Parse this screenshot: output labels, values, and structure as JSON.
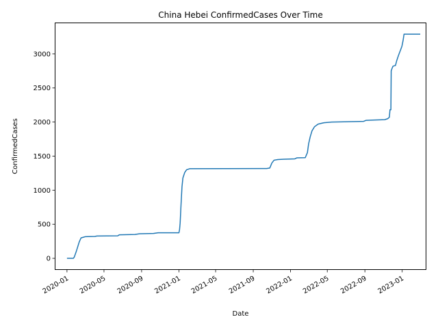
{
  "chart_data": {
    "type": "line",
    "title": "China Hebei ConfirmedCases Over Time",
    "xlabel": "Date",
    "ylabel": "ConfirmedCases",
    "xlim": [
      "2019-11-22",
      "2023-03-21"
    ],
    "ylim": [
      -170,
      3460
    ],
    "grid": false,
    "x_ticks": [
      "2020-01",
      "2020-05",
      "2020-09",
      "2021-01",
      "2021-05",
      "2021-09",
      "2022-01",
      "2022-05",
      "2022-09",
      "2023-01"
    ],
    "y_ticks": [
      0,
      500,
      1000,
      1500,
      2000,
      2500,
      3000
    ],
    "series": [
      {
        "color": "#1f77b4",
        "points": [
          [
            "2020-01-01",
            0
          ],
          [
            "2020-01-22",
            1
          ],
          [
            "2020-01-25",
            20
          ],
          [
            "2020-02-01",
            110
          ],
          [
            "2020-02-10",
            240
          ],
          [
            "2020-02-16",
            300
          ],
          [
            "2020-02-24",
            310
          ],
          [
            "2020-03-01",
            318
          ],
          [
            "2020-04-01",
            321
          ],
          [
            "2020-04-08",
            328
          ],
          [
            "2020-06-15",
            330
          ],
          [
            "2020-06-20",
            345
          ],
          [
            "2020-08-10",
            350
          ],
          [
            "2020-08-25",
            360
          ],
          [
            "2020-10-10",
            365
          ],
          [
            "2020-10-25",
            375
          ],
          [
            "2021-01-01",
            375
          ],
          [
            "2021-01-03",
            420
          ],
          [
            "2021-01-05",
            520
          ],
          [
            "2021-01-08",
            800
          ],
          [
            "2021-01-11",
            1050
          ],
          [
            "2021-01-14",
            1180
          ],
          [
            "2021-01-20",
            1260
          ],
          [
            "2021-01-26",
            1300
          ],
          [
            "2021-02-05",
            1315
          ],
          [
            "2021-10-15",
            1318
          ],
          [
            "2021-10-25",
            1325
          ],
          [
            "2021-11-01",
            1400
          ],
          [
            "2021-11-08",
            1440
          ],
          [
            "2021-11-20",
            1450
          ],
          [
            "2021-12-10",
            1455
          ],
          [
            "2022-01-15",
            1460
          ],
          [
            "2022-01-22",
            1475
          ],
          [
            "2022-02-18",
            1477
          ],
          [
            "2022-02-25",
            1550
          ],
          [
            "2022-03-01",
            1680
          ],
          [
            "2022-03-06",
            1780
          ],
          [
            "2022-03-12",
            1870
          ],
          [
            "2022-03-20",
            1930
          ],
          [
            "2022-04-01",
            1970
          ],
          [
            "2022-04-20",
            1990
          ],
          [
            "2022-05-15",
            2000
          ],
          [
            "2022-08-28",
            2010
          ],
          [
            "2022-09-05",
            2025
          ],
          [
            "2022-09-25",
            2028
          ],
          [
            "2022-11-05",
            2035
          ],
          [
            "2022-11-15",
            2050
          ],
          [
            "2022-11-20",
            2070
          ],
          [
            "2022-11-22",
            2180
          ],
          [
            "2022-11-25",
            2180
          ],
          [
            "2022-11-26",
            2750
          ],
          [
            "2022-11-29",
            2790
          ],
          [
            "2022-12-02",
            2820
          ],
          [
            "2022-12-10",
            2830
          ],
          [
            "2022-12-14",
            2900
          ],
          [
            "2022-12-20",
            2980
          ],
          [
            "2022-12-26",
            3050
          ],
          [
            "2022-12-31",
            3110
          ],
          [
            "2023-01-04",
            3200
          ],
          [
            "2023-01-07",
            3290
          ],
          [
            "2023-03-01",
            3290
          ]
        ]
      }
    ]
  }
}
